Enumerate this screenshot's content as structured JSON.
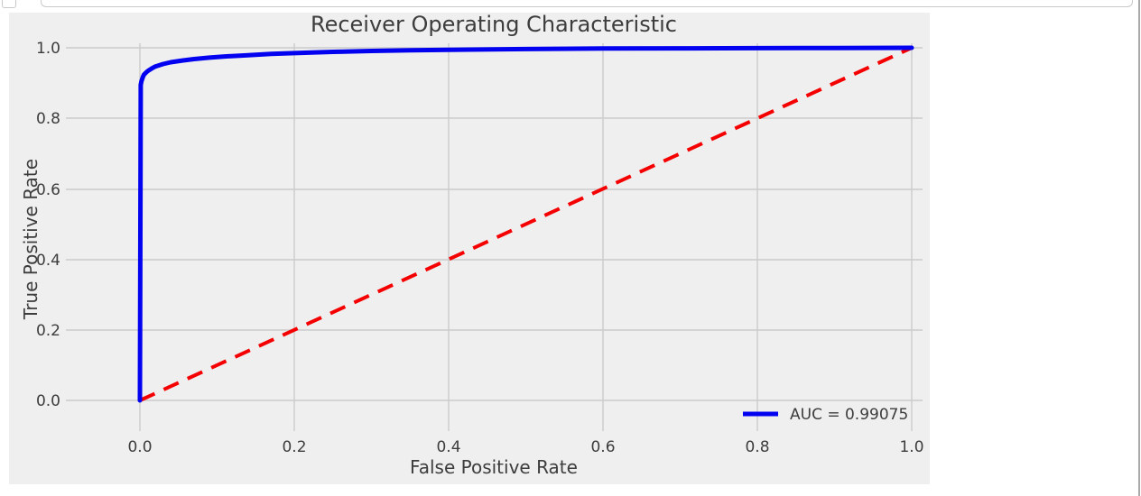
{
  "notebook": {
    "cell_input_box": "jupyter-cell-input-border-fragment",
    "cell_prompt_box": "jupyter-cell-prompt-fragment"
  },
  "colors": {
    "figure_background": "#efefef",
    "gridline": "#cbcbcb",
    "text": "#3d3d3d",
    "curve_blue": "#0202f0",
    "chance_red": "#f50000",
    "chrome_border": "#c9c9c9",
    "panel_border": "#a9a9a9"
  },
  "chart_data": {
    "type": "line",
    "title": "Receiver Operating Characteristic",
    "xlabel": "False Positive Rate",
    "ylabel": "True Positive Rate",
    "x_tick_labels": [
      "0.0",
      "0.2",
      "0.4",
      "0.6",
      "0.8",
      "1.0"
    ],
    "y_tick_labels": [
      "0.0",
      "0.2",
      "0.4",
      "0.6",
      "0.8",
      "1.0"
    ],
    "xlim": [
      -0.096,
      1.014
    ],
    "ylim": [
      -0.087,
      1.013
    ],
    "grid": true,
    "auc": 0.99075,
    "legend": {
      "position": "lower right",
      "entries": [
        {
          "label": "AUC = 0.99075",
          "color": "#0202f0"
        }
      ]
    },
    "series": [
      {
        "name": "ROC curve",
        "color": "#0202f0",
        "style": "solid",
        "width": 5,
        "x": [
          0,
          0.001,
          0.001,
          0.002,
          0.003,
          0.004,
          0.005,
          0.007,
          0.01,
          0.015,
          0.02,
          0.03,
          0.04,
          0.055,
          0.07,
          0.09,
          0.11,
          0.14,
          0.17,
          0.2,
          0.25,
          0.3,
          0.35,
          0.4,
          0.5,
          0.6,
          0.7,
          0.8,
          0.9,
          1.0
        ],
        "y": [
          0,
          0.878,
          0.895,
          0.905,
          0.912,
          0.918,
          0.923,
          0.928,
          0.934,
          0.941,
          0.947,
          0.954,
          0.959,
          0.964,
          0.968,
          0.972,
          0.9755,
          0.979,
          0.9825,
          0.985,
          0.9885,
          0.991,
          0.993,
          0.9945,
          0.9965,
          0.998,
          0.9985,
          0.999,
          0.9995,
          1.0
        ]
      },
      {
        "name": "Chance line",
        "color": "#f50000",
        "style": "dashed",
        "width": 4,
        "x": [
          0,
          1
        ],
        "y": [
          0,
          1
        ]
      }
    ]
  }
}
